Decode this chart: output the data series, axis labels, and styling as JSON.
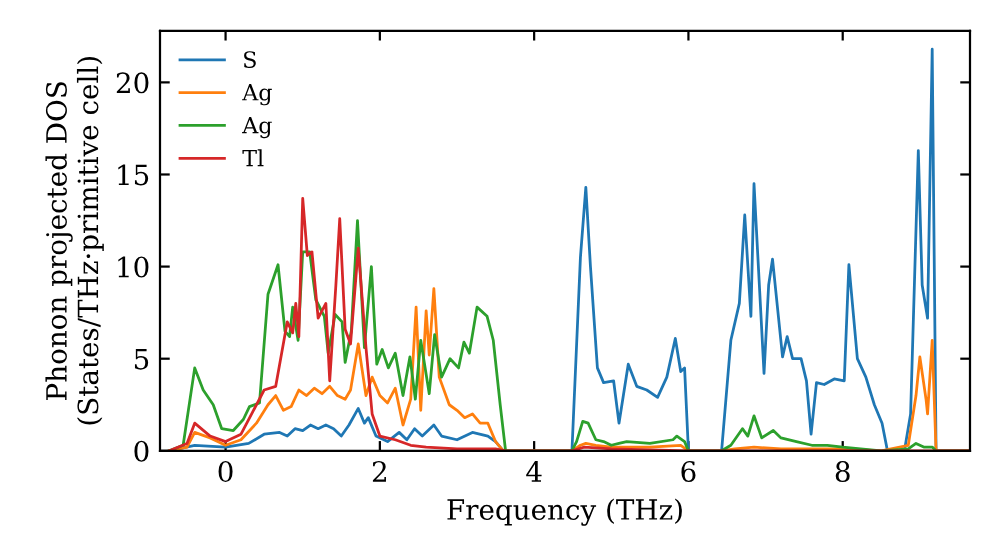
{
  "chart_data": {
    "type": "line",
    "xlabel": "Frequency (THz)",
    "ylabel": "Phonon projected DOS\n(States/THz·primitive cell)",
    "xlim": [
      -0.85,
      9.65
    ],
    "ylim": [
      0,
      22.8
    ],
    "xticks": [
      0,
      2,
      4,
      6,
      8
    ],
    "yticks": [
      0,
      5,
      10,
      15,
      20
    ],
    "grid": false,
    "legend": "top left",
    "marker": "none",
    "line_style": "solid",
    "series": [
      {
        "name": "S",
        "color": "#1f77b4",
        "x": [
          -0.73,
          -0.4,
          0,
          0.3,
          0.5,
          0.7,
          0.8,
          0.9,
          1.0,
          1.1,
          1.2,
          1.3,
          1.4,
          1.5,
          1.6,
          1.72,
          1.8,
          1.85,
          1.95,
          2.1,
          2.25,
          2.35,
          2.45,
          2.55,
          2.7,
          2.8,
          3.0,
          3.2,
          3.4,
          3.5,
          3.6,
          4.49,
          4.6,
          4.67,
          4.73,
          4.82,
          4.9,
          5.03,
          5.1,
          5.22,
          5.33,
          5.46,
          5.6,
          5.72,
          5.83,
          5.9,
          5.95,
          6.0,
          6.43,
          6.55,
          6.66,
          6.73,
          6.81,
          6.85,
          6.98,
          7.04,
          7.09,
          7.22,
          7.28,
          7.35,
          7.46,
          7.53,
          7.59,
          7.66,
          7.76,
          7.89,
          8.02,
          8.08,
          8.19,
          8.3,
          8.41,
          8.51,
          8.58,
          8.8,
          8.88,
          8.98,
          9.03,
          9.1,
          9.16,
          9.21,
          9.65
        ],
        "values": [
          0,
          0.3,
          0.2,
          0.4,
          0.9,
          1.0,
          0.8,
          1.2,
          1.1,
          1.4,
          1.2,
          1.4,
          1.2,
          0.8,
          1.4,
          2.3,
          1.5,
          1.8,
          0.8,
          0.5,
          1.0,
          0.6,
          1.2,
          0.8,
          1.4,
          0.8,
          0.6,
          1.0,
          0.8,
          0.5,
          0,
          0,
          10.5,
          14.3,
          10.0,
          4.5,
          3.7,
          3.8,
          1.5,
          4.7,
          3.5,
          3.3,
          2.9,
          4.0,
          6.1,
          4.3,
          4.5,
          0,
          0,
          6.0,
          8.0,
          12.8,
          7.3,
          14.5,
          4.2,
          9.0,
          10.4,
          5.1,
          6.2,
          5.0,
          5.0,
          3.8,
          0.9,
          3.7,
          3.6,
          3.9,
          3.8,
          10.1,
          5.0,
          4.0,
          2.5,
          1.5,
          0,
          0,
          2.0,
          16.3,
          9.0,
          7.2,
          21.8,
          0,
          0
        ]
      },
      {
        "name": "Ag",
        "color": "#ff7f0e",
        "x": [
          -0.73,
          -0.5,
          -0.4,
          -0.2,
          0,
          0.2,
          0.4,
          0.55,
          0.65,
          0.75,
          0.85,
          0.95,
          1.05,
          1.15,
          1.25,
          1.35,
          1.45,
          1.55,
          1.62,
          1.72,
          1.82,
          1.9,
          2.0,
          2.1,
          2.2,
          2.3,
          2.4,
          2.47,
          2.53,
          2.6,
          2.64,
          2.7,
          2.77,
          2.9,
          3.0,
          3.1,
          3.2,
          3.3,
          3.4,
          3.5,
          3.6,
          4.49,
          4.6,
          4.67,
          4.8,
          5.0,
          5.5,
          5.9,
          6.0,
          6.43,
          6.6,
          6.85,
          7.2,
          8.0,
          8.5,
          8.85,
          8.95,
          9.0,
          9.08,
          9.1,
          9.16,
          9.21,
          9.65
        ],
        "values": [
          0,
          0.2,
          1.0,
          0.7,
          0.3,
          0.6,
          1.5,
          2.5,
          3.0,
          2.2,
          2.4,
          3.3,
          3.0,
          3.4,
          3.1,
          3.5,
          3.0,
          2.8,
          3.3,
          5.8,
          3.0,
          4.0,
          3.0,
          2.6,
          3.4,
          1.4,
          2.8,
          7.8,
          2.2,
          7.6,
          5.2,
          8.8,
          4.0,
          2.5,
          2.2,
          1.8,
          2.0,
          1.5,
          1.5,
          0.5,
          0,
          0,
          0.3,
          0.4,
          0.3,
          0.2,
          0.2,
          0.3,
          0,
          0,
          0.1,
          0.2,
          0.1,
          0.1,
          0,
          0.3,
          3.0,
          5.1,
          2.8,
          2.0,
          6.0,
          0,
          0
        ]
      },
      {
        "name": "Ag",
        "color": "#2ca02c",
        "x": [
          -0.73,
          -0.55,
          -0.4,
          -0.29,
          -0.16,
          -0.05,
          0.1,
          0.23,
          0.31,
          0.44,
          0.55,
          0.68,
          0.77,
          0.83,
          0.87,
          0.94,
          1.0,
          1.09,
          1.17,
          1.28,
          1.33,
          1.42,
          1.51,
          1.55,
          1.63,
          1.71,
          1.8,
          1.89,
          1.96,
          2.03,
          2.11,
          2.2,
          2.3,
          2.39,
          2.46,
          2.53,
          2.64,
          2.71,
          2.8,
          2.91,
          3.02,
          3.09,
          3.16,
          3.26,
          3.39,
          3.47,
          3.56,
          3.63,
          4.49,
          4.55,
          4.63,
          4.7,
          4.8,
          4.9,
          5.0,
          5.1,
          5.2,
          5.5,
          5.8,
          5.85,
          5.95,
          6.0,
          6.43,
          6.55,
          6.7,
          6.77,
          6.85,
          6.95,
          7.1,
          7.2,
          7.4,
          7.6,
          7.8,
          8.0,
          8.5,
          8.85,
          8.95,
          9.05,
          9.16,
          9.21,
          9.65
        ],
        "values": [
          0,
          0.3,
          4.5,
          3.3,
          2.5,
          1.2,
          1.1,
          1.7,
          2.4,
          2.6,
          8.5,
          10.1,
          6.5,
          6.2,
          7.8,
          6.0,
          10.8,
          10.8,
          8.2,
          7.3,
          5.3,
          7.4,
          7.0,
          4.8,
          6.5,
          12.5,
          5.6,
          10.0,
          4.7,
          5.5,
          4.5,
          5.3,
          3.0,
          5.1,
          2.8,
          6.0,
          3.1,
          6.3,
          4.0,
          5.0,
          4.5,
          5.9,
          5.3,
          7.8,
          7.3,
          6.0,
          2.5,
          0,
          0,
          0.5,
          1.6,
          1.5,
          0.6,
          0.5,
          0.3,
          0.4,
          0.5,
          0.4,
          0.6,
          0.8,
          0.5,
          0,
          0,
          0.3,
          1.2,
          0.8,
          1.9,
          0.7,
          1.1,
          0.7,
          0.5,
          0.3,
          0.3,
          0.2,
          0,
          0.1,
          0.4,
          0.2,
          0.2,
          0,
          0
        ]
      },
      {
        "name": "Tl",
        "color": "#d62728",
        "x": [
          -0.73,
          -0.5,
          -0.4,
          -0.2,
          0,
          0.2,
          0.35,
          0.5,
          0.65,
          0.8,
          0.87,
          0.91,
          0.95,
          1.0,
          1.06,
          1.12,
          1.2,
          1.3,
          1.35,
          1.43,
          1.48,
          1.55,
          1.62,
          1.72,
          1.82,
          1.9,
          2.0,
          2.2,
          2.4,
          2.6,
          3.0,
          3.5,
          3.63,
          4.49,
          4.65,
          5.0,
          6.0,
          9.65
        ],
        "values": [
          0,
          0.4,
          1.5,
          0.8,
          0.5,
          0.9,
          2.1,
          3.3,
          3.5,
          7.0,
          6.4,
          8.0,
          6.2,
          13.7,
          10.6,
          10.8,
          7.2,
          8.0,
          3.8,
          9.0,
          12.6,
          6.6,
          5.8,
          11.0,
          5.6,
          2.0,
          0.8,
          0.6,
          0.3,
          0.2,
          0.1,
          0.1,
          0,
          0,
          0.2,
          0.1,
          0,
          0
        ]
      }
    ]
  }
}
